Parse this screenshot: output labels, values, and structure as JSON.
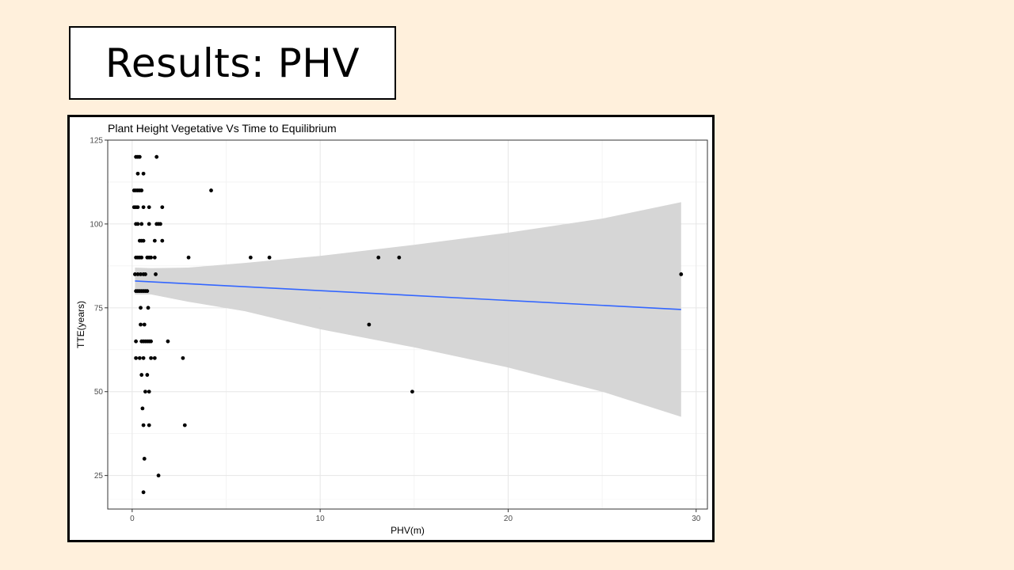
{
  "slide": {
    "title": "Results: PHV"
  },
  "chart_data": {
    "type": "scatter",
    "title": "Plant Height Vegetative Vs Time to Equilibrium",
    "xlabel": "PHV(m)",
    "ylabel": "TTE(years)",
    "xlim": [
      -1.3,
      30.6
    ],
    "ylim": [
      15,
      125
    ],
    "xticks": [
      0,
      10,
      20,
      30
    ],
    "yticks": [
      25,
      50,
      75,
      100,
      125
    ],
    "grid": true,
    "colors": {
      "points": "#000000",
      "fit_line": "#3366ff",
      "confidence_band": "#d4d4d4"
    },
    "points": [
      {
        "x": 0.2,
        "y": 120
      },
      {
        "x": 0.3,
        "y": 120
      },
      {
        "x": 0.4,
        "y": 120
      },
      {
        "x": 1.3,
        "y": 120
      },
      {
        "x": 0.3,
        "y": 115
      },
      {
        "x": 0.6,
        "y": 115
      },
      {
        "x": 0.1,
        "y": 110
      },
      {
        "x": 0.2,
        "y": 110
      },
      {
        "x": 0.3,
        "y": 110
      },
      {
        "x": 0.4,
        "y": 110
      },
      {
        "x": 0.5,
        "y": 110
      },
      {
        "x": 4.2,
        "y": 110
      },
      {
        "x": 0.1,
        "y": 105
      },
      {
        "x": 0.2,
        "y": 105
      },
      {
        "x": 0.3,
        "y": 105
      },
      {
        "x": 0.6,
        "y": 105
      },
      {
        "x": 0.9,
        "y": 105
      },
      {
        "x": 1.6,
        "y": 105
      },
      {
        "x": 0.2,
        "y": 100
      },
      {
        "x": 0.3,
        "y": 100
      },
      {
        "x": 0.5,
        "y": 100
      },
      {
        "x": 0.9,
        "y": 100
      },
      {
        "x": 1.3,
        "y": 100
      },
      {
        "x": 1.4,
        "y": 100
      },
      {
        "x": 1.5,
        "y": 100
      },
      {
        "x": 0.4,
        "y": 95
      },
      {
        "x": 0.5,
        "y": 95
      },
      {
        "x": 0.6,
        "y": 95
      },
      {
        "x": 1.2,
        "y": 95
      },
      {
        "x": 1.6,
        "y": 95
      },
      {
        "x": 0.2,
        "y": 90
      },
      {
        "x": 0.3,
        "y": 90
      },
      {
        "x": 0.4,
        "y": 90
      },
      {
        "x": 0.5,
        "y": 90
      },
      {
        "x": 0.8,
        "y": 90
      },
      {
        "x": 0.9,
        "y": 90
      },
      {
        "x": 1.0,
        "y": 90
      },
      {
        "x": 1.2,
        "y": 90
      },
      {
        "x": 3.0,
        "y": 90
      },
      {
        "x": 6.3,
        "y": 90
      },
      {
        "x": 7.3,
        "y": 90
      },
      {
        "x": 13.1,
        "y": 90
      },
      {
        "x": 14.2,
        "y": 90
      },
      {
        "x": 0.15,
        "y": 85
      },
      {
        "x": 0.3,
        "y": 85
      },
      {
        "x": 0.45,
        "y": 85
      },
      {
        "x": 0.6,
        "y": 85
      },
      {
        "x": 0.7,
        "y": 85
      },
      {
        "x": 1.25,
        "y": 85
      },
      {
        "x": 29.2,
        "y": 85
      },
      {
        "x": 0.2,
        "y": 80
      },
      {
        "x": 0.3,
        "y": 80
      },
      {
        "x": 0.4,
        "y": 80
      },
      {
        "x": 0.5,
        "y": 80
      },
      {
        "x": 0.6,
        "y": 80
      },
      {
        "x": 0.7,
        "y": 80
      },
      {
        "x": 0.8,
        "y": 80
      },
      {
        "x": 0.45,
        "y": 75
      },
      {
        "x": 0.85,
        "y": 75
      },
      {
        "x": 0.45,
        "y": 70
      },
      {
        "x": 0.65,
        "y": 70
      },
      {
        "x": 12.6,
        "y": 70
      },
      {
        "x": 0.2,
        "y": 65
      },
      {
        "x": 0.5,
        "y": 65
      },
      {
        "x": 0.6,
        "y": 65
      },
      {
        "x": 0.7,
        "y": 65
      },
      {
        "x": 0.8,
        "y": 65
      },
      {
        "x": 0.9,
        "y": 65
      },
      {
        "x": 1.0,
        "y": 65
      },
      {
        "x": 1.9,
        "y": 65
      },
      {
        "x": 0.2,
        "y": 60
      },
      {
        "x": 0.4,
        "y": 60
      },
      {
        "x": 0.6,
        "y": 60
      },
      {
        "x": 1.0,
        "y": 60
      },
      {
        "x": 1.2,
        "y": 60
      },
      {
        "x": 2.7,
        "y": 60
      },
      {
        "x": 0.5,
        "y": 55
      },
      {
        "x": 0.8,
        "y": 55
      },
      {
        "x": 0.7,
        "y": 50
      },
      {
        "x": 0.9,
        "y": 50
      },
      {
        "x": 14.9,
        "y": 50
      },
      {
        "x": 0.55,
        "y": 45
      },
      {
        "x": 0.6,
        "y": 40
      },
      {
        "x": 0.9,
        "y": 40
      },
      {
        "x": 2.8,
        "y": 40
      },
      {
        "x": 0.65,
        "y": 30
      },
      {
        "x": 1.4,
        "y": 25
      },
      {
        "x": 0.6,
        "y": 20
      }
    ],
    "fit_line": {
      "x": [
        0.15,
        29.2
      ],
      "y": [
        83.0,
        74.5
      ]
    },
    "confidence_band": {
      "x": [
        0.15,
        1.0,
        3.0,
        6.0,
        10.0,
        15.0,
        20.0,
        25.0,
        29.2
      ],
      "upper": [
        87.0,
        86.8,
        87.0,
        88.4,
        90.5,
        93.8,
        97.4,
        101.6,
        106.5
      ],
      "lower": [
        79.0,
        79.0,
        76.8,
        74.0,
        68.6,
        63.2,
        57.2,
        50.0,
        42.5
      ]
    }
  }
}
